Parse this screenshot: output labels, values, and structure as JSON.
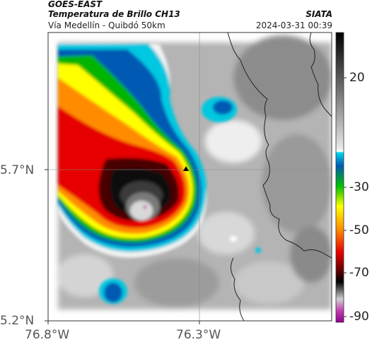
{
  "header": {
    "satellite": "GOES-EAST",
    "product": "Temperatura de Brillo CH13",
    "area": "Vía Medellín - Quibdó 50km",
    "organization": "SIATA",
    "timestamp": "2024-03-31 00:39"
  },
  "map": {
    "latitude_labels": [
      "5.7°N",
      "5.2°N"
    ],
    "longitude_labels": [
      "76.8°W",
      "76.3°W"
    ],
    "marker": "triangle-marker"
  },
  "colorbar": {
    "tick_labels": [
      "20",
      "-30",
      "-50",
      "-70",
      "-90"
    ],
    "colors": {
      "warm": "#ffffff",
      "cyan": "#00c8e0",
      "blue": "#005ab4",
      "green": "#00b400",
      "yellow": "#ffff00",
      "orange": "#ff8c00",
      "red": "#e60000",
      "dark_red": "#780000",
      "black": "#000000",
      "gray": "#a0a0a0",
      "magenta": "#c040b0"
    }
  }
}
